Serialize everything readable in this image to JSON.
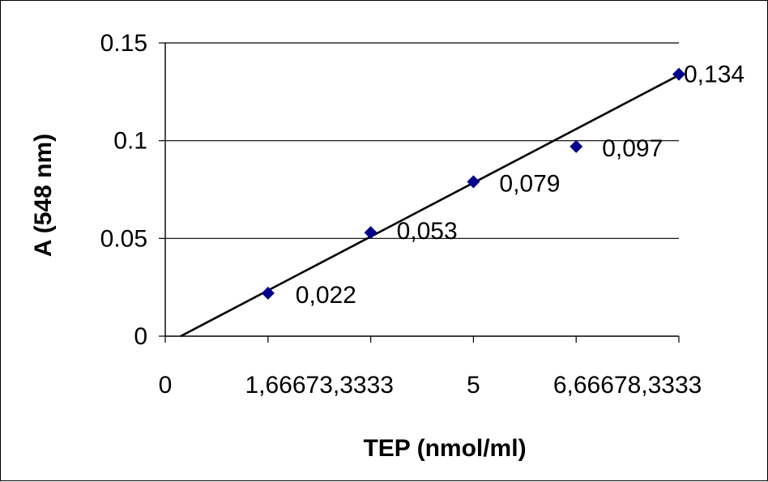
{
  "chart_data": {
    "type": "scatter",
    "title": "",
    "xlabel": "TEP (nmol/ml)",
    "ylabel": "A (548 nm)",
    "x_categories": [
      "0",
      "1,6667",
      "3,3333",
      "5",
      "6,6667",
      "8,3333"
    ],
    "x_tick_text": [
      "0",
      "1,66673,3333",
      "5",
      "6,66678,3333"
    ],
    "ylim": [
      0,
      0.15
    ],
    "y_ticks": [
      {
        "value": 0,
        "label": "0"
      },
      {
        "value": 0.05,
        "label": "0.05"
      },
      {
        "value": 0.1,
        "label": "0.1"
      },
      {
        "value": 0.15,
        "label": "0.15"
      }
    ],
    "grid": "horizontal",
    "series": [
      {
        "x": [
          1.6667,
          3.3333,
          5,
          6.6667,
          8.3333
        ],
        "y": [
          0.022,
          0.053,
          0.079,
          0.097,
          0.134
        ],
        "labels": [
          "0,022",
          "0,053",
          "0,079",
          "0,097",
          "0,134"
        ],
        "marker": "diamond",
        "color": "#00008B"
      }
    ],
    "trendline": {
      "type": "linear",
      "x": [
        0.25,
        8.3333
      ],
      "y": [
        0,
        0.1335
      ],
      "color": "#000000"
    }
  }
}
